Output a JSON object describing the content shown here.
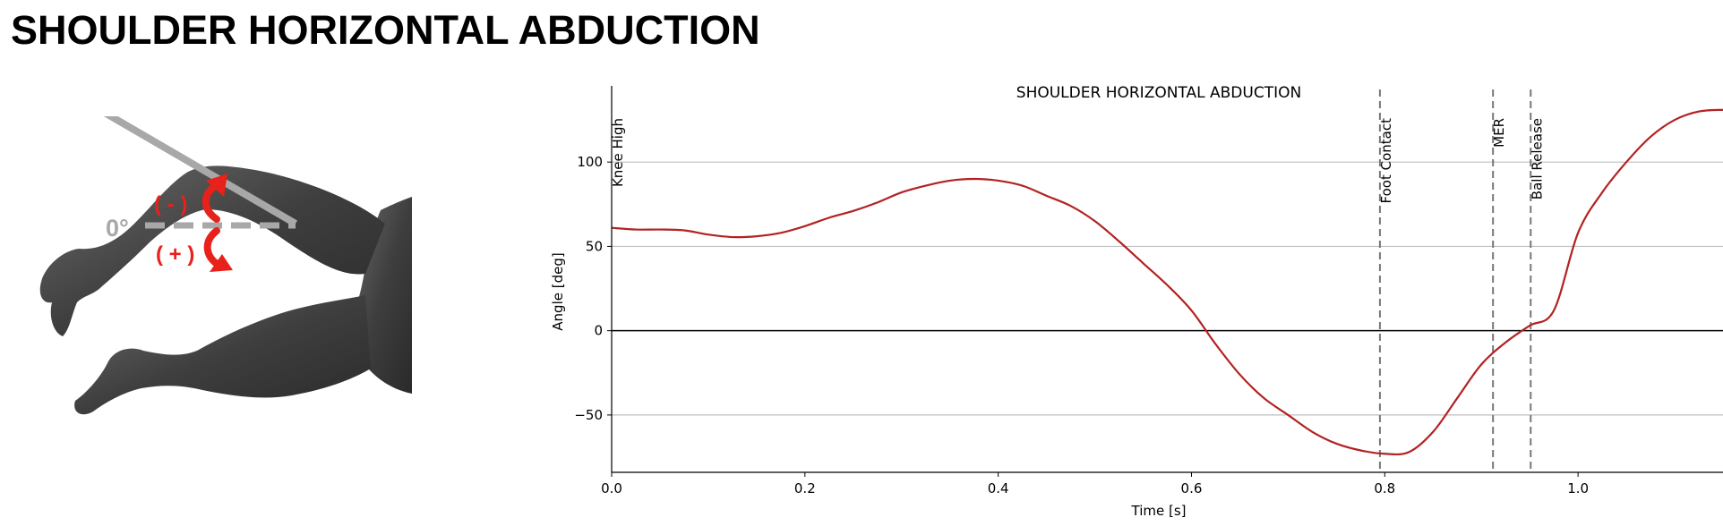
{
  "page": {
    "title": "SHOULDER HORIZONTAL ABDUCTION"
  },
  "illustration": {
    "zero_label": "0°",
    "minus_label": "( - )",
    "plus_label": "( + )",
    "arrow_color": "#e8211b",
    "reference_color": "#a8a8a8",
    "body_color": "#4a4a4a"
  },
  "chart_data": {
    "type": "line",
    "title": "SHOULDER HORIZONTAL ABDUCTION",
    "xlabel": "Time [s]",
    "ylabel": "Angle [deg]",
    "xlim": [
      0.0,
      1.15
    ],
    "ylim": [
      -84,
      142
    ],
    "xticks": [
      0.0,
      0.2,
      0.4,
      0.6,
      0.8,
      1.0
    ],
    "xtick_labels": [
      "0.0",
      "0.2",
      "0.4",
      "0.6",
      "0.8",
      "1.0"
    ],
    "yticks": [
      -50,
      0,
      50,
      100
    ],
    "ytick_labels": [
      "−50",
      "0",
      "50",
      "100"
    ],
    "grid": "horizontal",
    "zero_line": true,
    "line_color": "#b22222",
    "events": [
      {
        "label": "Knee High",
        "x": 0.0,
        "dashed": false
      },
      {
        "label": "Foot Contact",
        "x": 0.795,
        "dashed": true
      },
      {
        "label": "MER",
        "x": 0.912,
        "dashed": true
      },
      {
        "label": "Ball Release",
        "x": 0.951,
        "dashed": true
      }
    ],
    "series": [
      {
        "x": [
          0.0,
          0.025,
          0.05,
          0.075,
          0.1,
          0.125,
          0.15,
          0.175,
          0.2,
          0.225,
          0.25,
          0.275,
          0.3,
          0.325,
          0.35,
          0.375,
          0.4,
          0.425,
          0.45,
          0.475,
          0.5,
          0.525,
          0.55,
          0.575,
          0.6,
          0.625,
          0.65,
          0.675,
          0.7,
          0.725,
          0.75,
          0.775,
          0.8,
          0.825,
          0.85,
          0.875,
          0.9,
          0.925,
          0.95,
          0.975,
          1.0,
          1.025,
          1.05,
          1.075,
          1.1,
          1.125,
          1.15
        ],
        "y": [
          61,
          60,
          60,
          59.5,
          57,
          55.5,
          56,
          58,
          62,
          67,
          71,
          76,
          82,
          86,
          89,
          90,
          89,
          86,
          80,
          74,
          65,
          53,
          40,
          27,
          12,
          -8,
          -26,
          -40,
          -50,
          -60,
          -67,
          -71,
          -73,
          -72,
          -60,
          -40,
          -20,
          -7,
          3,
          12,
          58,
          82,
          100,
          115,
          125,
          130,
          131
        ]
      }
    ]
  }
}
